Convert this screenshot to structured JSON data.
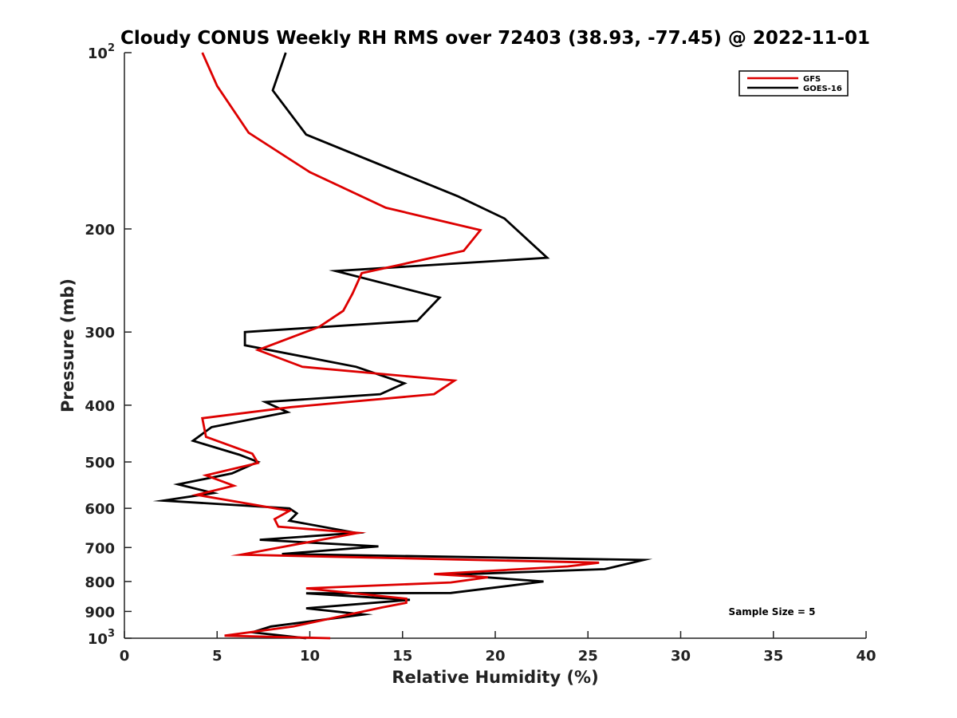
{
  "chart_data": {
    "type": "line",
    "title": "Cloudy CONUS Weekly RH RMS over 72403 (38.93, -77.45) @ 2022-11-01",
    "xlabel": "Relative Humidity (%)",
    "ylabel": "Pressure (mb)",
    "xlim": [
      0,
      40
    ],
    "ylim": [
      100,
      1000
    ],
    "y_scale": "log",
    "y_reversed": true,
    "grid": false,
    "legend_position": "top-right",
    "x_ticks": [
      "0",
      "5",
      "10",
      "15",
      "20",
      "25",
      "30",
      "35",
      "40"
    ],
    "y_ticks": [
      {
        "value": 100,
        "base": "10",
        "exp": "2"
      },
      {
        "value": 200,
        "label": "200"
      },
      {
        "value": 300,
        "label": "300"
      },
      {
        "value": 400,
        "label": "400"
      },
      {
        "value": 500,
        "label": "500"
      },
      {
        "value": 600,
        "label": "600"
      },
      {
        "value": 700,
        "label": "700"
      },
      {
        "value": 800,
        "label": "800"
      },
      {
        "value": 900,
        "label": "900"
      },
      {
        "value": 1000,
        "base": "10",
        "exp": "3"
      }
    ],
    "annotation": "Sample Size = 5",
    "series": [
      {
        "name": "GFS",
        "color": "#dd0000",
        "x": [
          4.2,
          5.0,
          6.7,
          10.0,
          14.1,
          19.2,
          18.3,
          12.8,
          12.3,
          11.8,
          10.5,
          7.2,
          9.6,
          17.8,
          16.7,
          9.0,
          4.2,
          4.4,
          6.9,
          7.2,
          4.4,
          5.9,
          3.9,
          8.9,
          8.1,
          8.3,
          12.6,
          6.3,
          25.6,
          23.9,
          16.7,
          19.6,
          17.6,
          9.8,
          15.2,
          15.2,
          13.9,
          9.1,
          5.4,
          11.1
        ],
        "y": [
          100,
          114,
          137,
          160,
          184,
          201,
          218,
          238,
          258,
          276,
          294,
          322,
          344,
          363,
          383,
          403,
          421,
          453,
          484,
          502,
          527,
          549,
          569,
          606,
          626,
          645,
          661,
          720,
          743,
          754,
          777,
          787,
          803,
          822,
          856,
          870,
          886,
          955,
          990,
          1000
        ]
      },
      {
        "name": "GOES-16",
        "color": "#000000",
        "x": [
          8.7,
          8.0,
          9.8,
          18.0,
          20.5,
          22.8,
          11.4,
          17.0,
          15.8,
          6.5,
          6.5,
          12.5,
          15.1,
          13.8,
          7.6,
          8.8,
          4.7,
          3.7,
          6.2,
          7.2,
          5.8,
          2.9,
          4.8,
          2.1,
          8.9,
          9.3,
          8.9,
          12.5,
          7.3,
          13.7,
          8.5,
          28.0,
          25.9,
          17.6,
          22.6,
          17.6,
          9.8,
          15.4,
          9.8,
          12.9,
          7.9,
          6.9,
          9.8
        ],
        "y": [
          100,
          116,
          138,
          176,
          192,
          224,
          236,
          262,
          287,
          300,
          316,
          344,
          367,
          383,
          395,
          411,
          436,
          460,
          486,
          500,
          523,
          546,
          565,
          582,
          600,
          612,
          630,
          661,
          679,
          697,
          718,
          735,
          762,
          779,
          800,
          837,
          838,
          860,
          889,
          911,
          955,
          977,
          1000
        ]
      }
    ]
  }
}
